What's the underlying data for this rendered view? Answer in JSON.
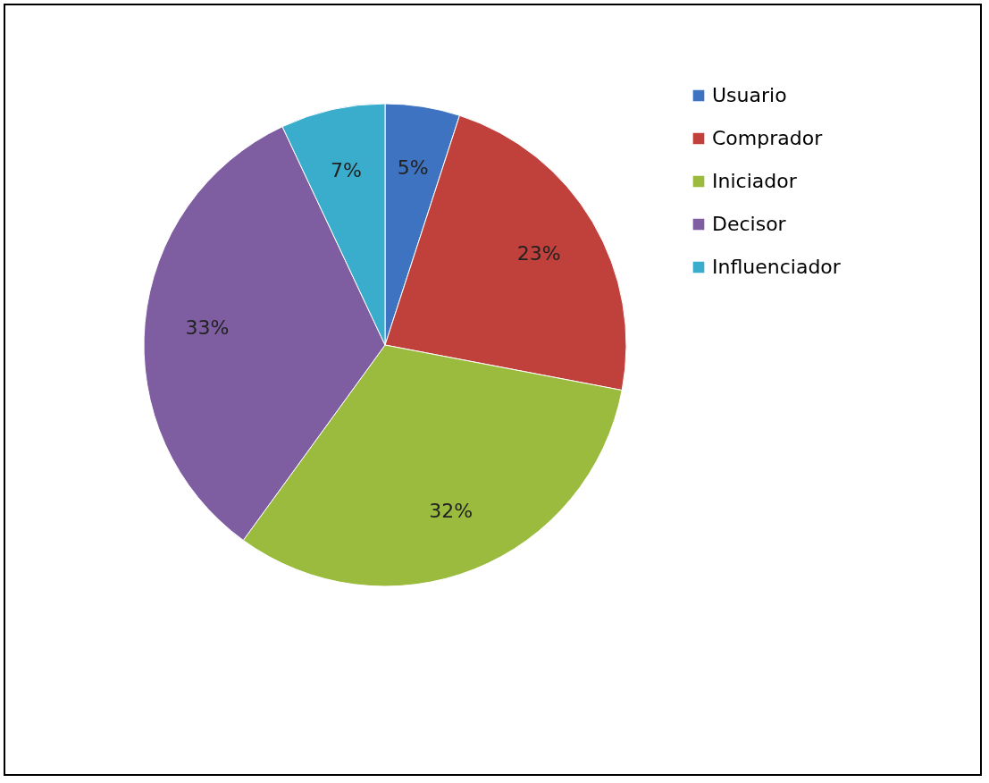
{
  "chart_data": {
    "type": "pie",
    "categories": [
      "Usuario",
      "Comprador",
      "Iniciador",
      "Decisor",
      "Influenciador"
    ],
    "values": [
      5,
      23,
      32,
      33,
      7
    ],
    "colors": [
      "#3d73c0",
      "#c0403c",
      "#9bbb3f",
      "#7e5da0",
      "#3aaccc"
    ],
    "value_labels": [
      "5%",
      "23%",
      "32%",
      "33%",
      "7%"
    ],
    "legend": "right"
  }
}
